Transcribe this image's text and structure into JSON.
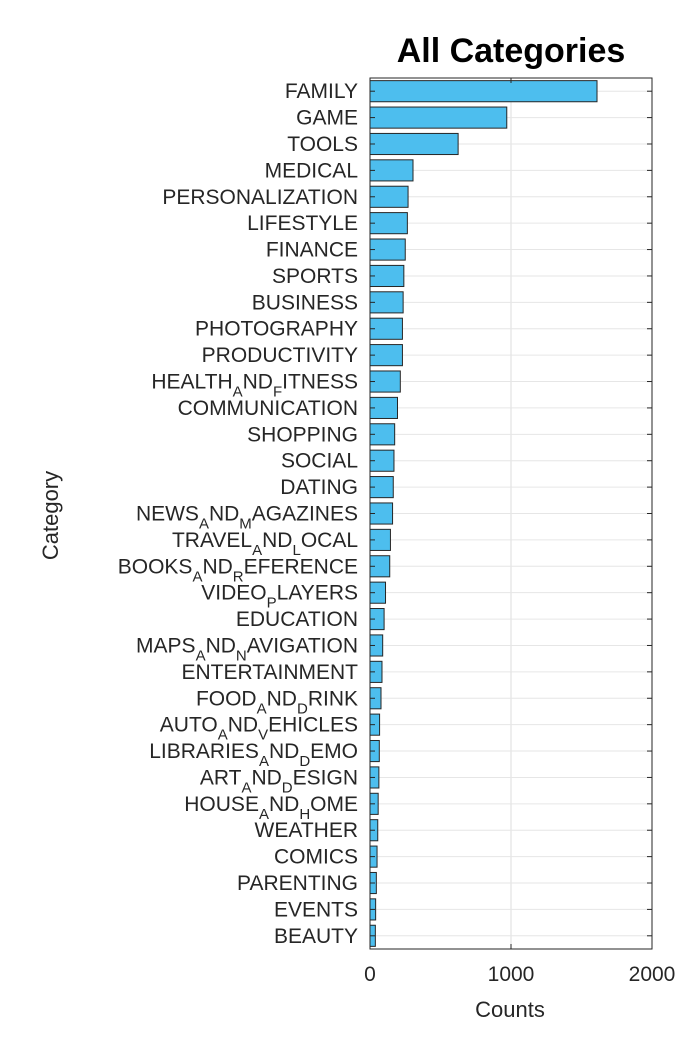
{
  "chart_data": {
    "type": "bar",
    "orientation": "horizontal",
    "title": "All Categories",
    "xlabel": "Counts",
    "ylabel": "Category",
    "xlim": [
      0,
      2000
    ],
    "xticks": [
      "0",
      "1000",
      "2000"
    ],
    "grid": true,
    "bar_color": "#4DBEEE",
    "bar_edge_color": "#262626",
    "categories": [
      {
        "label": "FAMILY",
        "display": [
          "FAMILY"
        ]
      },
      {
        "label": "GAME",
        "display": [
          "GAME"
        ]
      },
      {
        "label": "TOOLS",
        "display": [
          "TOOLS"
        ]
      },
      {
        "label": "MEDICAL",
        "display": [
          "MEDICAL"
        ]
      },
      {
        "label": "PERSONALIZATION",
        "display": [
          "PERSONALIZATION"
        ]
      },
      {
        "label": "LIFESTYLE",
        "display": [
          "LIFESTYLE"
        ]
      },
      {
        "label": "FINANCE",
        "display": [
          "FINANCE"
        ]
      },
      {
        "label": "SPORTS",
        "display": [
          "SPORTS"
        ]
      },
      {
        "label": "BUSINESS",
        "display": [
          "BUSINESS"
        ]
      },
      {
        "label": "PHOTOGRAPHY",
        "display": [
          "PHOTOGRAPHY"
        ]
      },
      {
        "label": "PRODUCTIVITY",
        "display": [
          "PRODUCTIVITY"
        ]
      },
      {
        "label": "HEALTH_AND_FITNESS",
        "display": [
          "HEALTH",
          "A",
          "ND",
          "F",
          "ITNESS"
        ]
      },
      {
        "label": "COMMUNICATION",
        "display": [
          "COMMUNICATION"
        ]
      },
      {
        "label": "SHOPPING",
        "display": [
          "SHOPPING"
        ]
      },
      {
        "label": "SOCIAL",
        "display": [
          "SOCIAL"
        ]
      },
      {
        "label": "DATING",
        "display": [
          "DATING"
        ]
      },
      {
        "label": "NEWS_AND_MAGAZINES",
        "display": [
          "NEWS",
          "A",
          "ND",
          "M",
          "AGAZINES"
        ]
      },
      {
        "label": "TRAVEL_AND_LOCAL",
        "display": [
          "TRAVEL",
          "A",
          "ND",
          "L",
          "OCAL"
        ]
      },
      {
        "label": "BOOKS_AND_REFERENCE",
        "display": [
          "BOOKS",
          "A",
          "ND",
          "R",
          "EFERENCE"
        ]
      },
      {
        "label": "VIDEO_PLAYERS",
        "display": [
          "VIDEO",
          "P",
          "LAYERS"
        ]
      },
      {
        "label": "EDUCATION",
        "display": [
          "EDUCATION"
        ]
      },
      {
        "label": "MAPS_AND_NAVIGATION",
        "display": [
          "MAPS",
          "A",
          "ND",
          "N",
          "AVIGATION"
        ]
      },
      {
        "label": "ENTERTAINMENT",
        "display": [
          "ENTERTAINMENT"
        ]
      },
      {
        "label": "FOOD_AND_DRINK",
        "display": [
          "FOOD",
          "A",
          "ND",
          "D",
          "RINK"
        ]
      },
      {
        "label": "AUTO_AND_VEHICLES",
        "display": [
          "AUTO",
          "A",
          "ND",
          "V",
          "EHICLES"
        ]
      },
      {
        "label": "LIBRARIES_AND_DEMO",
        "display": [
          "LIBRARIES",
          "A",
          "ND",
          "D",
          "EMO"
        ]
      },
      {
        "label": "ART_AND_DESIGN",
        "display": [
          "ART",
          "A",
          "ND",
          "D",
          "ESIGN"
        ]
      },
      {
        "label": "HOUSE_AND_HOME",
        "display": [
          "HOUSE",
          "A",
          "ND",
          "H",
          "OME"
        ]
      },
      {
        "label": "WEATHER",
        "display": [
          "WEATHER"
        ]
      },
      {
        "label": "COMICS",
        "display": [
          "COMICS"
        ]
      },
      {
        "label": "PARENTING",
        "display": [
          "PARENTING"
        ]
      },
      {
        "label": "EVENTS",
        "display": [
          "EVENTS"
        ]
      },
      {
        "label": "BEAUTY",
        "display": [
          "BEAUTY"
        ]
      }
    ],
    "values": [
      1610,
      970,
      625,
      305,
      270,
      265,
      250,
      240,
      235,
      230,
      230,
      215,
      195,
      175,
      170,
      165,
      160,
      145,
      140,
      110,
      100,
      90,
      85,
      78,
      68,
      66,
      63,
      58,
      55,
      50,
      45,
      40,
      38
    ]
  }
}
